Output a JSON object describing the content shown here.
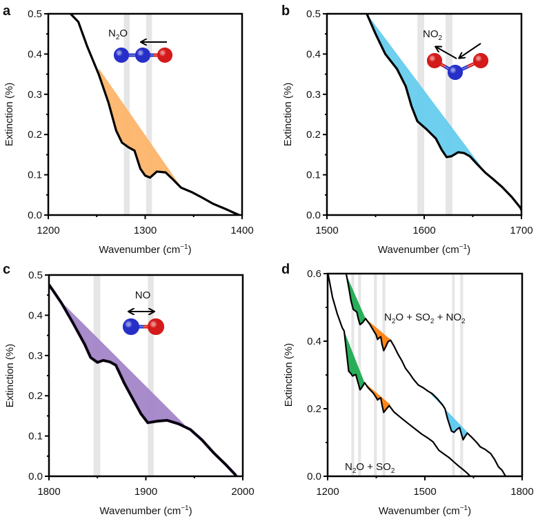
{
  "chart_data": [
    {
      "type": "area",
      "panel": "a",
      "title": "",
      "annotation": {
        "text": "N",
        "sub": "2",
        "tail": "O",
        "molecule": "N2O",
        "vibration": "asymmetric-stretch"
      },
      "xlabel": "Wavenumber (cm",
      "xlabel_sup": "−1",
      "xlabel_tail": ")",
      "ylabel": "Extinction (%)",
      "xlim": [
        1200,
        1400
      ],
      "ylim": [
        0,
        0.5
      ],
      "xticks": [
        1200,
        1300,
        1400
      ],
      "xminor": [
        1250,
        1350
      ],
      "yticks": [
        0.0,
        0.1,
        0.2,
        0.3,
        0.4,
        0.5
      ],
      "yminor": [
        0.05,
        0.15,
        0.25,
        0.35,
        0.45
      ],
      "ytick_labels": [
        "0.0",
        "0.1",
        "0.2",
        "0.3",
        "0.4",
        "0.5"
      ],
      "bands": [
        [
          1278,
          1284
        ],
        [
          1301,
          1307
        ]
      ],
      "fill_color": "#FDB46A",
      "series": [
        {
          "name": "extinction",
          "x": [
            1223,
            1231,
            1240,
            1252,
            1262,
            1270,
            1276,
            1283,
            1289,
            1295,
            1300,
            1305,
            1312,
            1321,
            1328,
            1337,
            1348,
            1359,
            1370,
            1383,
            1394,
            1397
          ],
          "y": [
            0.5,
            0.48,
            0.42,
            0.35,
            0.28,
            0.21,
            0.18,
            0.168,
            0.16,
            0.115,
            0.098,
            0.093,
            0.108,
            0.106,
            0.09,
            0.068,
            0.057,
            0.043,
            0.028,
            0.015,
            0.003,
            0.0
          ]
        }
      ],
      "fills": [
        {
          "from": 1252,
          "to": 1337,
          "baseline": [
            [
              1252,
              0.365
            ],
            [
              1337,
              0.07
            ]
          ]
        }
      ]
    },
    {
      "type": "area",
      "panel": "b",
      "annotation": {
        "text": "NO",
        "sub": "2",
        "tail": "",
        "molecule": "NO2",
        "vibration": "asymmetric-stretch"
      },
      "xlabel": "Wavenumber (cm",
      "xlabel_sup": "−1",
      "xlabel_tail": ")",
      "ylabel": "Extinction (%)",
      "xlim": [
        1500,
        1700
      ],
      "ylim": [
        0,
        0.5
      ],
      "xticks": [
        1500,
        1600,
        1700
      ],
      "xminor": [
        1550,
        1650
      ],
      "yticks": [
        0.0,
        0.1,
        0.2,
        0.3,
        0.4,
        0.5
      ],
      "yminor": [
        0.05,
        0.15,
        0.25,
        0.35,
        0.45
      ],
      "ytick_labels": [
        "0.0",
        "0.1",
        "0.2",
        "0.3",
        "0.4",
        "0.5"
      ],
      "bands": [
        [
          1593,
          1600
        ],
        [
          1622,
          1629
        ]
      ],
      "fill_color": "#66CCEE",
      "series": [
        {
          "name": "extinction",
          "x": [
            1541,
            1550,
            1560,
            1572,
            1581,
            1587,
            1593,
            1602,
            1612,
            1618,
            1623,
            1628,
            1635,
            1641,
            1647,
            1655,
            1663,
            1671,
            1680,
            1690,
            1699,
            1700
          ],
          "y": [
            0.5,
            0.45,
            0.4,
            0.363,
            0.32,
            0.27,
            0.233,
            0.214,
            0.19,
            0.162,
            0.144,
            0.146,
            0.156,
            0.154,
            0.146,
            0.125,
            0.105,
            0.089,
            0.07,
            0.045,
            0.018,
            0.012
          ]
        }
      ],
      "fills": [
        {
          "from": 1541,
          "to": 1665,
          "baseline": [
            [
              1541,
              0.5
            ],
            [
              1665,
              0.1
            ]
          ]
        }
      ]
    },
    {
      "type": "area",
      "panel": "c",
      "annotation": {
        "text": "NO",
        "sub": "",
        "tail": "",
        "molecule": "NO",
        "vibration": "stretch"
      },
      "xlabel": "Wavenumber (cm",
      "xlabel_sup": "−1",
      "xlabel_tail": ")",
      "ylabel": "Extinction (%)",
      "xlim": [
        1800,
        2000
      ],
      "ylim": [
        0,
        0.5
      ],
      "xticks": [
        1800,
        1900,
        2000
      ],
      "xminor": [
        1850,
        1950
      ],
      "yticks": [
        0.0,
        0.1,
        0.2,
        0.3,
        0.4,
        0.5
      ],
      "yminor": [
        0.05,
        0.15,
        0.25,
        0.35,
        0.45
      ],
      "ytick_labels": [
        "0.0",
        "0.1",
        "0.2",
        "0.3",
        "0.4",
        "0.5"
      ],
      "bands": [
        [
          1846,
          1853
        ],
        [
          1902,
          1908
        ]
      ],
      "fill_color": "#A385C7",
      "series": [
        {
          "name": "extinction",
          "x": [
            1800,
            1806,
            1813,
            1825,
            1837,
            1843,
            1850,
            1856,
            1863,
            1869,
            1878,
            1887,
            1895,
            1902,
            1912,
            1922,
            1934,
            1946,
            1958,
            1970,
            1982,
            1993
          ],
          "y": [
            0.476,
            0.455,
            0.43,
            0.38,
            0.327,
            0.295,
            0.283,
            0.288,
            0.284,
            0.276,
            0.23,
            0.19,
            0.155,
            0.133,
            0.137,
            0.139,
            0.13,
            0.116,
            0.09,
            0.058,
            0.03,
            0.002
          ]
        }
      ],
      "fills": [
        {
          "from": 1810,
          "to": 1940,
          "baseline": [
            [
              1810,
              0.44
            ],
            [
              1940,
              0.128
            ]
          ]
        }
      ]
    },
    {
      "type": "area",
      "panel": "d",
      "annotations": [
        {
          "text": "N",
          "sub": "2",
          "tail": "O + SO",
          "sub2": "2",
          "tail2": " + NO",
          "sub3": "2"
        },
        {
          "text": "N",
          "sub": "2",
          "tail": "O + SO",
          "sub2": "2"
        }
      ],
      "xlabel": "Wavenumber (cm",
      "xlabel_sup": "−1",
      "xlabel_tail": ")",
      "ylabel": "Extinction (%)",
      "xlim": [
        1200,
        1800
      ],
      "ylim": [
        0,
        0.6
      ],
      "xticks": [
        1200,
        1500,
        1800
      ],
      "xminor": [
        1350,
        1650
      ],
      "yticks": [
        0.0,
        0.2,
        0.4,
        0.6
      ],
      "yminor": [
        0.1,
        0.3,
        0.5
      ],
      "ytick_labels": [
        "0.0",
        "0.2",
        "0.4",
        "0.6"
      ],
      "bands": [
        [
          1273,
          1282
        ],
        [
          1294,
          1303
        ],
        [
          1343,
          1352
        ],
        [
          1369,
          1378
        ],
        [
          1584,
          1592
        ],
        [
          1609,
          1618
        ]
      ],
      "series": [
        {
          "name": "N2O + SO2 + NO2",
          "x": [
            1258,
            1265,
            1272,
            1279,
            1285,
            1290,
            1295,
            1300,
            1308,
            1317,
            1330,
            1343,
            1349,
            1354,
            1359,
            1364,
            1368,
            1373,
            1380,
            1386,
            1394,
            1405,
            1418,
            1429,
            1440,
            1452,
            1465,
            1480,
            1495,
            1508,
            1522,
            1538,
            1554,
            1562,
            1570,
            1582,
            1590,
            1600,
            1607,
            1612,
            1618,
            1624,
            1631,
            1645,
            1660,
            1671,
            1685,
            1703,
            1715,
            1727,
            1738,
            1749
          ],
          "y": [
            0.596,
            0.56,
            0.52,
            0.494,
            0.49,
            0.486,
            0.465,
            0.449,
            0.455,
            0.467,
            0.45,
            0.429,
            0.42,
            0.405,
            0.41,
            0.413,
            0.39,
            0.372,
            0.385,
            0.398,
            0.403,
            0.385,
            0.36,
            0.342,
            0.32,
            0.305,
            0.287,
            0.27,
            0.262,
            0.253,
            0.245,
            0.23,
            0.212,
            0.2,
            0.17,
            0.134,
            0.13,
            0.14,
            0.144,
            0.128,
            0.108,
            0.118,
            0.128,
            0.115,
            0.1,
            0.087,
            0.08,
            0.067,
            0.05,
            0.028,
            0.018,
            0.0
          ]
        },
        {
          "name": "N2O + SO2",
          "x": [
            1202,
            1215,
            1230,
            1245,
            1251,
            1258,
            1265,
            1271,
            1277,
            1283,
            1287,
            1293,
            1300,
            1307,
            1314,
            1325,
            1341,
            1348,
            1354,
            1359,
            1364,
            1368,
            1373,
            1380,
            1390,
            1405,
            1429,
            1450,
            1470,
            1490,
            1508,
            1525,
            1543,
            1560,
            1575,
            1590,
            1607,
            1620,
            1632,
            1640
          ],
          "y": [
            0.596,
            0.53,
            0.48,
            0.44,
            0.43,
            0.37,
            0.311,
            0.305,
            0.297,
            0.3,
            0.301,
            0.28,
            0.256,
            0.265,
            0.277,
            0.262,
            0.246,
            0.236,
            0.226,
            0.23,
            0.232,
            0.21,
            0.189,
            0.198,
            0.209,
            0.19,
            0.171,
            0.155,
            0.14,
            0.125,
            0.114,
            0.102,
            0.077,
            0.065,
            0.055,
            0.042,
            0.028,
            0.018,
            0.008,
            0.0
          ]
        }
      ],
      "fills": [
        {
          "series": 0,
          "color": "#1DAA50",
          "from": 1258,
          "to": 1317,
          "baseline": [
            [
              1258,
              0.596
            ],
            [
              1317,
              0.467
            ]
          ]
        },
        {
          "series": 0,
          "color": "#FF7F0E",
          "from": 1317,
          "to": 1400,
          "baseline": [
            [
              1317,
              0.467
            ],
            [
              1400,
              0.4
            ]
          ]
        },
        {
          "series": 0,
          "color": "#5CC8F0",
          "from": 1508,
          "to": 1634,
          "baseline": [
            [
              1508,
              0.253
            ],
            [
              1634,
              0.128
            ]
          ]
        },
        {
          "series": 1,
          "color": "#1DAA50",
          "from": 1251,
          "to": 1314,
          "baseline": [
            [
              1251,
              0.43
            ],
            [
              1314,
              0.277
            ]
          ]
        },
        {
          "series": 1,
          "color": "#FF7F0E",
          "from": 1314,
          "to": 1394,
          "baseline": [
            [
              1314,
              0.277
            ],
            [
              1394,
              0.212
            ]
          ]
        }
      ]
    }
  ],
  "panel_labels": [
    "a",
    "b",
    "c",
    "d"
  ],
  "colors": {
    "band": "#E6E6E6",
    "line": "#000000",
    "atom_n": "#2630C8",
    "atom_o": "#D41A1A"
  }
}
